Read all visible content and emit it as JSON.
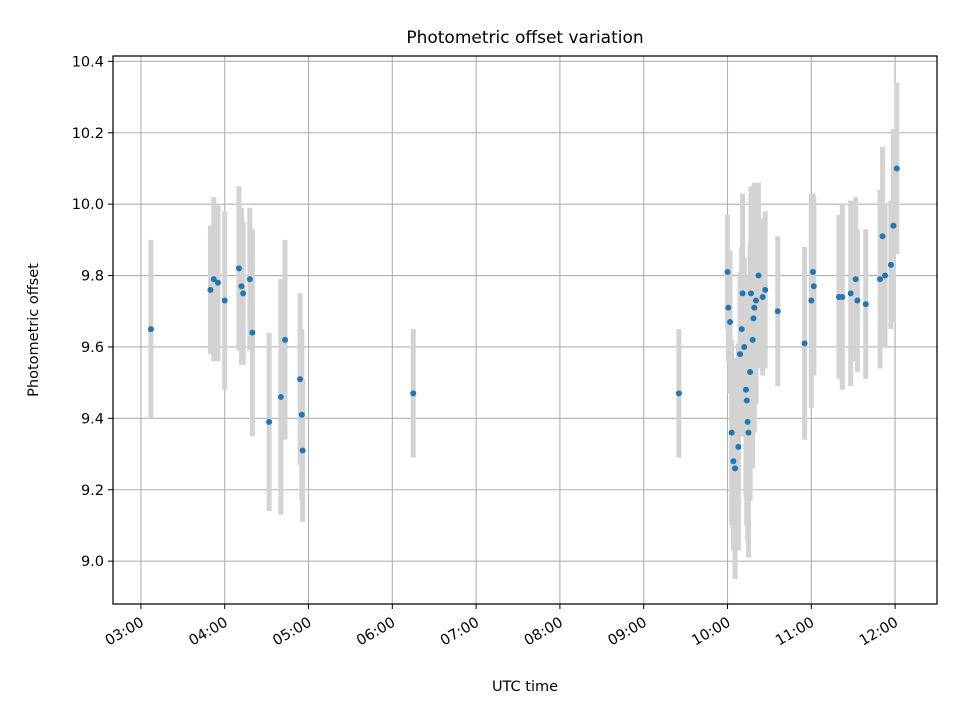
{
  "chart_data": {
    "type": "scatter",
    "title": "Photometric offset variation",
    "xlabel": "UTC time",
    "ylabel": "Photometric offset",
    "x_unit": "hours",
    "xlim": [
      2.667,
      12.5
    ],
    "ylim": [
      8.88,
      10.415
    ],
    "x_ticks": [
      3,
      4,
      5,
      6,
      7,
      8,
      9,
      10,
      11,
      12
    ],
    "x_tick_labels": [
      "03:00",
      "04:00",
      "05:00",
      "06:00",
      "07:00",
      "08:00",
      "09:00",
      "10:00",
      "11:00",
      "12:00"
    ],
    "y_ticks": [
      9.0,
      9.2,
      9.4,
      9.6,
      9.8,
      10.0,
      10.2,
      10.4
    ],
    "y_tick_labels": [
      "9.0",
      "9.2",
      "9.4",
      "9.6",
      "9.8",
      "10.0",
      "10.2",
      "10.4"
    ],
    "grid": true,
    "colors": {
      "points": "#1f77b4",
      "error_bars": "#d3d3d3",
      "grid": "#b0b0b0"
    },
    "series": [
      {
        "x_time": [
          "03:07",
          "03:50",
          "03:52",
          "03:55",
          "04:00",
          "04:10",
          "04:12",
          "04:13",
          "04:18",
          "04:20",
          "04:32",
          "04:40",
          "04:43",
          "04:54",
          "04:55",
          "04:56",
          "06:15",
          "09:25",
          "10:00",
          "10:01",
          "10:02",
          "10:03",
          "10:04",
          "10:05",
          "10:08",
          "10:09",
          "10:10",
          "10:11",
          "10:12",
          "10:13",
          "10:14",
          "10:15",
          "10:15",
          "10:16",
          "10:17",
          "10:18",
          "10:18",
          "10:19",
          "10:20",
          "10:22",
          "10:25",
          "10:27",
          "10:36",
          "10:55",
          "11:00",
          "11:01",
          "11:02",
          "11:20",
          "11:22",
          "11:28",
          "11:32",
          "11:33",
          "11:39",
          "11:49",
          "11:51",
          "11:53",
          "11:57",
          "11:59",
          "12:01"
        ],
        "x": [
          3.12,
          3.83,
          3.87,
          3.92,
          4.0,
          4.17,
          4.2,
          4.22,
          4.3,
          4.33,
          4.53,
          4.67,
          4.72,
          4.9,
          4.92,
          4.93,
          6.25,
          9.42,
          10.0,
          10.01,
          10.03,
          10.05,
          10.07,
          10.09,
          10.13,
          10.15,
          10.17,
          10.18,
          10.2,
          10.22,
          10.23,
          10.24,
          10.25,
          10.27,
          10.28,
          10.3,
          10.31,
          10.32,
          10.34,
          10.37,
          10.42,
          10.45,
          10.6,
          10.92,
          11.0,
          11.02,
          11.03,
          11.33,
          11.37,
          11.47,
          11.53,
          11.55,
          11.65,
          11.82,
          11.85,
          11.88,
          11.95,
          11.98,
          12.02
        ],
        "y": [
          9.65,
          9.76,
          9.79,
          9.78,
          9.73,
          9.82,
          9.77,
          9.75,
          9.79,
          9.64,
          9.39,
          9.46,
          9.62,
          9.51,
          9.41,
          9.31,
          9.47,
          9.47,
          9.81,
          9.71,
          9.67,
          9.36,
          9.28,
          9.26,
          9.32,
          9.58,
          9.65,
          9.75,
          9.6,
          9.48,
          9.45,
          9.39,
          9.36,
          9.53,
          9.75,
          9.62,
          9.68,
          9.71,
          9.73,
          9.8,
          9.74,
          9.76,
          9.7,
          9.61,
          9.73,
          9.81,
          9.77,
          9.74,
          9.74,
          9.75,
          9.79,
          9.73,
          9.72,
          9.79,
          9.91,
          9.8,
          9.83,
          9.94,
          10.1
        ],
        "yerr": [
          0.25,
          0.18,
          0.23,
          0.22,
          0.25,
          0.23,
          0.22,
          0.2,
          0.2,
          0.29,
          0.25,
          0.33,
          0.28,
          0.24,
          0.24,
          0.2,
          0.18,
          0.18,
          0.16,
          0.15,
          0.2,
          0.26,
          0.25,
          0.31,
          0.29,
          0.23,
          0.23,
          0.28,
          0.25,
          0.3,
          0.35,
          0.33,
          0.35,
          0.36,
          0.3,
          0.36,
          0.26,
          0.35,
          0.29,
          0.26,
          0.22,
          0.22,
          0.21,
          0.27,
          0.3,
          0.22,
          0.25,
          0.23,
          0.26,
          0.26,
          0.23,
          0.2,
          0.21,
          0.25,
          0.25,
          0.2,
          0.18,
          0.27,
          0.24
        ]
      }
    ]
  }
}
